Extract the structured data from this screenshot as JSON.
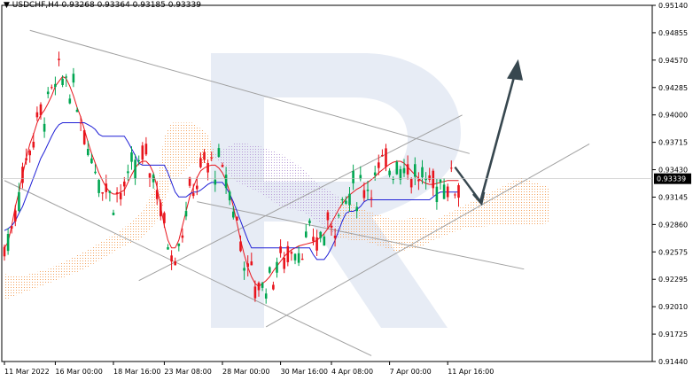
{
  "header": {
    "symbol": "USDCHF,H4",
    "quotes": "0.93268 0.93364 0.93185 0.93339"
  },
  "chart_data": {
    "type": "candlestick",
    "title": "USDCHF,H4",
    "xlabel": "",
    "ylabel": "",
    "ylim": [
      0.9144,
      0.9514
    ],
    "grid": false,
    "y_ticks": [
      "0.95140",
      "0.94855",
      "0.94570",
      "0.94285",
      "0.94000",
      "0.93715",
      "0.93430",
      "0.93145",
      "0.92860",
      "0.92575",
      "0.92295",
      "0.92010",
      "0.91725",
      "0.91440"
    ],
    "x_ticks": [
      {
        "label": "11 Mar 2022",
        "index": 0
      },
      {
        "label": "16 Mar 00:00",
        "index": 14
      },
      {
        "label": "18 Mar 16:00",
        "index": 30
      },
      {
        "label": "23 Mar 08:00",
        "index": 44
      },
      {
        "label": "28 Mar 00:00",
        "index": 60
      },
      {
        "label": "30 Mar 16:00",
        "index": 76
      },
      {
        "label": "4 Apr 08:00",
        "index": 90
      },
      {
        "label": "7 Apr 00:00",
        "index": 106
      },
      {
        "label": "11 Apr 16:00",
        "index": 122
      }
    ],
    "current_price": "0.93339",
    "colors": {
      "bull": "#00a651",
      "bear": "#e8141c",
      "tenkan": "#e8141c",
      "kijun": "#1f1fd6",
      "cloud_bull": "#f4a460",
      "cloud_bear": "#b79ad6",
      "channel": "#a0a0a0",
      "arrow": "#37474f",
      "watermark": "#dde4f0"
    },
    "series": [
      {
        "name": "tenkan",
        "values": [
          0.9262,
          0.9268,
          0.9285,
          0.9305,
          0.932,
          0.9338,
          0.9355,
          0.937,
          0.938,
          0.9392,
          0.94,
          0.9405,
          0.9412,
          0.942,
          0.943,
          0.9435,
          0.944,
          0.9438,
          0.943,
          0.942,
          0.9408,
          0.9398,
          0.9385,
          0.9372,
          0.936,
          0.935,
          0.934,
          0.9332,
          0.9325,
          0.932,
          0.9318,
          0.9318,
          0.932,
          0.9322,
          0.933,
          0.9338,
          0.9345,
          0.935,
          0.9352,
          0.9352,
          0.9348,
          0.934,
          0.9325,
          0.9305,
          0.9285,
          0.927,
          0.9262,
          0.9262,
          0.927,
          0.9285,
          0.93,
          0.9315,
          0.9325,
          0.9335,
          0.9342,
          0.9345,
          0.9347,
          0.9348,
          0.9348,
          0.9345,
          0.934,
          0.9332,
          0.932,
          0.9305,
          0.9288,
          0.927,
          0.9255,
          0.9242,
          0.9232,
          0.9225,
          0.9222,
          0.9225,
          0.9228,
          0.9232,
          0.9238,
          0.9243,
          0.9248,
          0.9253,
          0.9257,
          0.926,
          0.9262,
          0.9264,
          0.9265,
          0.9266,
          0.9267,
          0.9268,
          0.927,
          0.9273,
          0.9277,
          0.9282,
          0.9288,
          0.9295,
          0.9302,
          0.9308,
          0.9313,
          0.9317,
          0.932,
          0.9323,
          0.9325,
          0.9328,
          0.933,
          0.9333,
          0.9336,
          0.934,
          0.9343,
          0.9346,
          0.9349,
          0.9351,
          0.9352,
          0.9352,
          0.935,
          0.9346,
          0.9342,
          0.9338,
          0.9334,
          0.9331,
          0.9329,
          0.9328,
          0.9328,
          0.9329,
          0.933,
          0.9331,
          0.9332,
          0.9332,
          0.9332,
          0.9332
        ]
      },
      {
        "name": "kijun",
        "values": [
          0.928,
          0.9282,
          0.9285,
          0.929,
          0.9298,
          0.9305,
          0.9315,
          0.9325,
          0.9335,
          0.9345,
          0.9355,
          0.9362,
          0.937,
          0.9378,
          0.9385,
          0.939,
          0.9392,
          0.9392,
          0.9392,
          0.9392,
          0.9392,
          0.9392,
          0.9392,
          0.939,
          0.9388,
          0.9385,
          0.938,
          0.9378,
          0.9378,
          0.9378,
          0.9378,
          0.9378,
          0.9378,
          0.9378,
          0.9372,
          0.9365,
          0.9358,
          0.935,
          0.9348,
          0.9348,
          0.9348,
          0.9348,
          0.9348,
          0.9348,
          0.9348,
          0.934,
          0.933,
          0.932,
          0.9315,
          0.9315,
          0.9315,
          0.9318,
          0.932,
          0.932,
          0.9322,
          0.9325,
          0.9328,
          0.933,
          0.933,
          0.933,
          0.933,
          0.9325,
          0.9318,
          0.931,
          0.93,
          0.929,
          0.928,
          0.927,
          0.9262,
          0.9262,
          0.9262,
          0.9262,
          0.9262,
          0.9262,
          0.9262,
          0.9262,
          0.9262,
          0.9262,
          0.9262,
          0.9262,
          0.9262,
          0.9262,
          0.9262,
          0.9262,
          0.9262,
          0.9255,
          0.925,
          0.925,
          0.925,
          0.9255,
          0.9262,
          0.927,
          0.928,
          0.929,
          0.9298,
          0.93,
          0.93,
          0.9302,
          0.9305,
          0.931,
          0.9312,
          0.9312,
          0.9312,
          0.9312,
          0.9312,
          0.9312,
          0.9312,
          0.9312,
          0.9312,
          0.9312,
          0.9312,
          0.9312,
          0.9312,
          0.9312,
          0.9312,
          0.9312,
          0.9312,
          0.9312,
          0.9315,
          0.9318,
          0.932,
          0.932,
          0.932,
          0.932,
          0.932,
          0.932
        ]
      }
    ],
    "candles_generated_note": ""
  }
}
